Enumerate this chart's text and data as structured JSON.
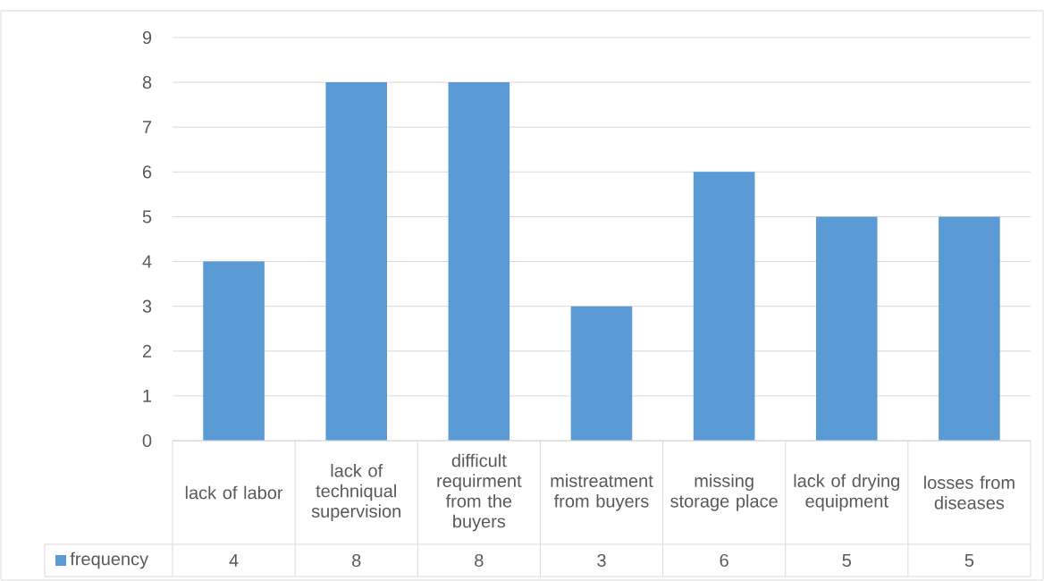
{
  "chart_data": {
    "type": "bar",
    "categories": [
      "lack of labor",
      "lack of techniqual supervision",
      "difficult requirment from the buyers",
      "mistreatment from buyers",
      "missing storage place",
      "lack of drying equipment",
      "losses from diseases"
    ],
    "series": [
      {
        "name": "frequency",
        "color": "#5b9bd5",
        "values": [
          4,
          8,
          8,
          3,
          6,
          5,
          5
        ]
      }
    ],
    "ylim": [
      0,
      9
    ],
    "yticks": [
      0,
      1,
      2,
      3,
      4,
      5,
      6,
      7,
      8,
      9
    ],
    "grid": "y",
    "legend": "bottom",
    "data_labels": true
  }
}
